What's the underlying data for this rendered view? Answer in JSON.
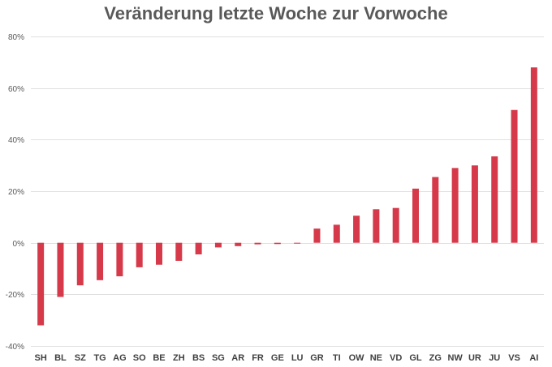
{
  "chart_data": {
    "type": "bar",
    "title": "Veränderung letzte Woche zur Vorwoche",
    "xlabel": "",
    "ylabel": "",
    "ylim": [
      -40,
      80
    ],
    "yticks": [
      -40,
      -20,
      0,
      20,
      40,
      60,
      80
    ],
    "ytick_suffix": "%",
    "grid": true,
    "legend": "none",
    "bar_color": "#d63a4a",
    "categories": [
      "SH",
      "BL",
      "SZ",
      "TG",
      "AG",
      "SO",
      "BE",
      "ZH",
      "BS",
      "SG",
      "AR",
      "FR",
      "GE",
      "LU",
      "GR",
      "TI",
      "OW",
      "NE",
      "VD",
      "GL",
      "ZG",
      "NW",
      "UR",
      "JU",
      "VS",
      "AI"
    ],
    "values": [
      -32,
      -21,
      -16.5,
      -14.5,
      -13,
      -9.5,
      -8.5,
      -7,
      -4.5,
      -1.8,
      -1.3,
      -0.6,
      -0.5,
      -0.3,
      5.5,
      7,
      10.5,
      13,
      13.5,
      21,
      25.5,
      29,
      30,
      33.5,
      51.5,
      68
    ]
  }
}
